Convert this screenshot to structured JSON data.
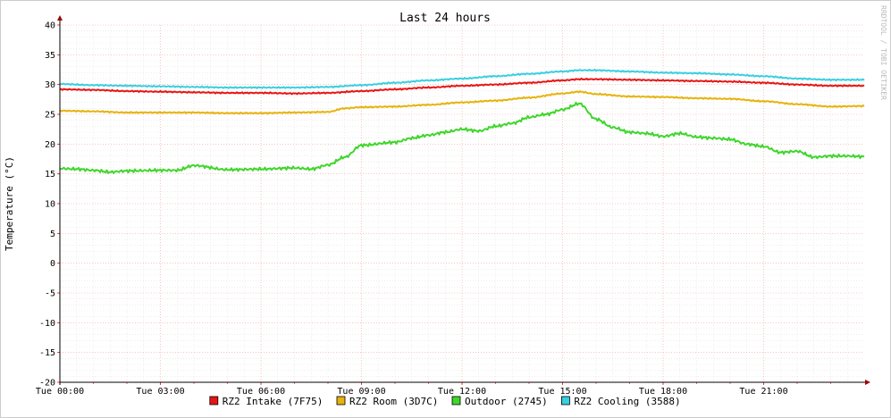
{
  "chart_data": {
    "type": "line",
    "title": "Last 24 hours",
    "ylabel": "Temperature (°C)",
    "xlabel": "",
    "watermark": "RRDTOOL / TOBI OETIKER",
    "ylim": [
      -20,
      40
    ],
    "yticks": [
      -20,
      -15,
      -10,
      -5,
      0,
      5,
      10,
      15,
      20,
      25,
      30,
      35,
      40
    ],
    "xlim": [
      0,
      24
    ],
    "xticks": [
      {
        "x": 0,
        "label": "Tue 00:00"
      },
      {
        "x": 3,
        "label": "Tue 03:00"
      },
      {
        "x": 6,
        "label": "Tue 06:00"
      },
      {
        "x": 9,
        "label": "Tue 09:00"
      },
      {
        "x": 12,
        "label": "Tue 12:00"
      },
      {
        "x": 15,
        "label": "Tue 15:00"
      },
      {
        "x": 18,
        "label": "Tue 18:00"
      },
      {
        "x": 21,
        "label": "Tue 21:00"
      }
    ],
    "grid": true,
    "legend_position": "bottom",
    "series": [
      {
        "name": "RZ2 Intake (7F75)",
        "color": "#e81414",
        "x": [
          0,
          1,
          2,
          3,
          4,
          5,
          6,
          7,
          8,
          9,
          10,
          11,
          12,
          13,
          14,
          15,
          15.5,
          16,
          17,
          18,
          19,
          20,
          21,
          22,
          23,
          24
        ],
        "y": [
          29.2,
          29.1,
          28.9,
          28.8,
          28.7,
          28.6,
          28.6,
          28.5,
          28.6,
          28.9,
          29.2,
          29.5,
          29.8,
          30.0,
          30.3,
          30.7,
          30.9,
          30.9,
          30.8,
          30.7,
          30.6,
          30.5,
          30.3,
          30.0,
          29.8,
          29.8
        ]
      },
      {
        "name": "RZ2 Room (3D7C)",
        "color": "#e6b30a",
        "x": [
          0,
          1,
          2,
          3,
          4,
          5,
          6,
          7,
          8,
          8.5,
          9,
          10,
          11,
          12,
          13,
          14,
          15,
          15.5,
          16,
          17,
          18,
          19,
          20,
          21,
          22,
          23,
          24
        ],
        "y": [
          25.6,
          25.5,
          25.3,
          25.3,
          25.3,
          25.2,
          25.2,
          25.3,
          25.4,
          26.0,
          26.2,
          26.3,
          26.6,
          27.0,
          27.3,
          27.8,
          28.5,
          28.8,
          28.4,
          28.0,
          27.9,
          27.7,
          27.6,
          27.2,
          26.7,
          26.3,
          26.4
        ]
      },
      {
        "name": "Outdoor (2745)",
        "color": "#3fd62c",
        "x": [
          0,
          0.5,
          1,
          1.5,
          2,
          3,
          3.5,
          4,
          5,
          6,
          7,
          7.5,
          8,
          8.5,
          9,
          10,
          10.5,
          11,
          11.5,
          12,
          12.5,
          13,
          13.5,
          14,
          14.5,
          15,
          15.5,
          16,
          16.5,
          17,
          17.5,
          18,
          18.5,
          19,
          19.5,
          20,
          20.5,
          21,
          21.5,
          22,
          22.5,
          23,
          23.5,
          24
        ],
        "y": [
          15.9,
          15.8,
          15.6,
          15.3,
          15.5,
          15.6,
          15.6,
          16.4,
          15.7,
          15.8,
          16.0,
          15.8,
          16.5,
          17.8,
          19.8,
          20.3,
          21.0,
          21.5,
          22.0,
          22.5,
          22.2,
          23.0,
          23.5,
          24.5,
          25.0,
          25.8,
          26.8,
          24.2,
          22.8,
          22.0,
          21.8,
          21.3,
          21.8,
          21.2,
          21.0,
          20.8,
          20.0,
          19.6,
          18.6,
          18.8,
          17.8,
          18.0,
          18.0,
          17.9
        ]
      },
      {
        "name": "RZ2 Cooling (3588)",
        "color": "#38cfe0",
        "x": [
          0,
          1,
          2,
          3,
          4,
          5,
          6,
          7,
          8,
          9,
          10,
          11,
          12,
          13,
          14,
          15,
          15.5,
          16,
          17,
          18,
          19,
          20,
          21,
          22,
          23,
          24
        ],
        "y": [
          30.1,
          29.9,
          29.8,
          29.7,
          29.6,
          29.5,
          29.5,
          29.5,
          29.6,
          29.9,
          30.3,
          30.7,
          31.0,
          31.4,
          31.8,
          32.2,
          32.4,
          32.4,
          32.2,
          32.0,
          31.9,
          31.7,
          31.4,
          31.0,
          30.8,
          30.8
        ]
      }
    ]
  }
}
